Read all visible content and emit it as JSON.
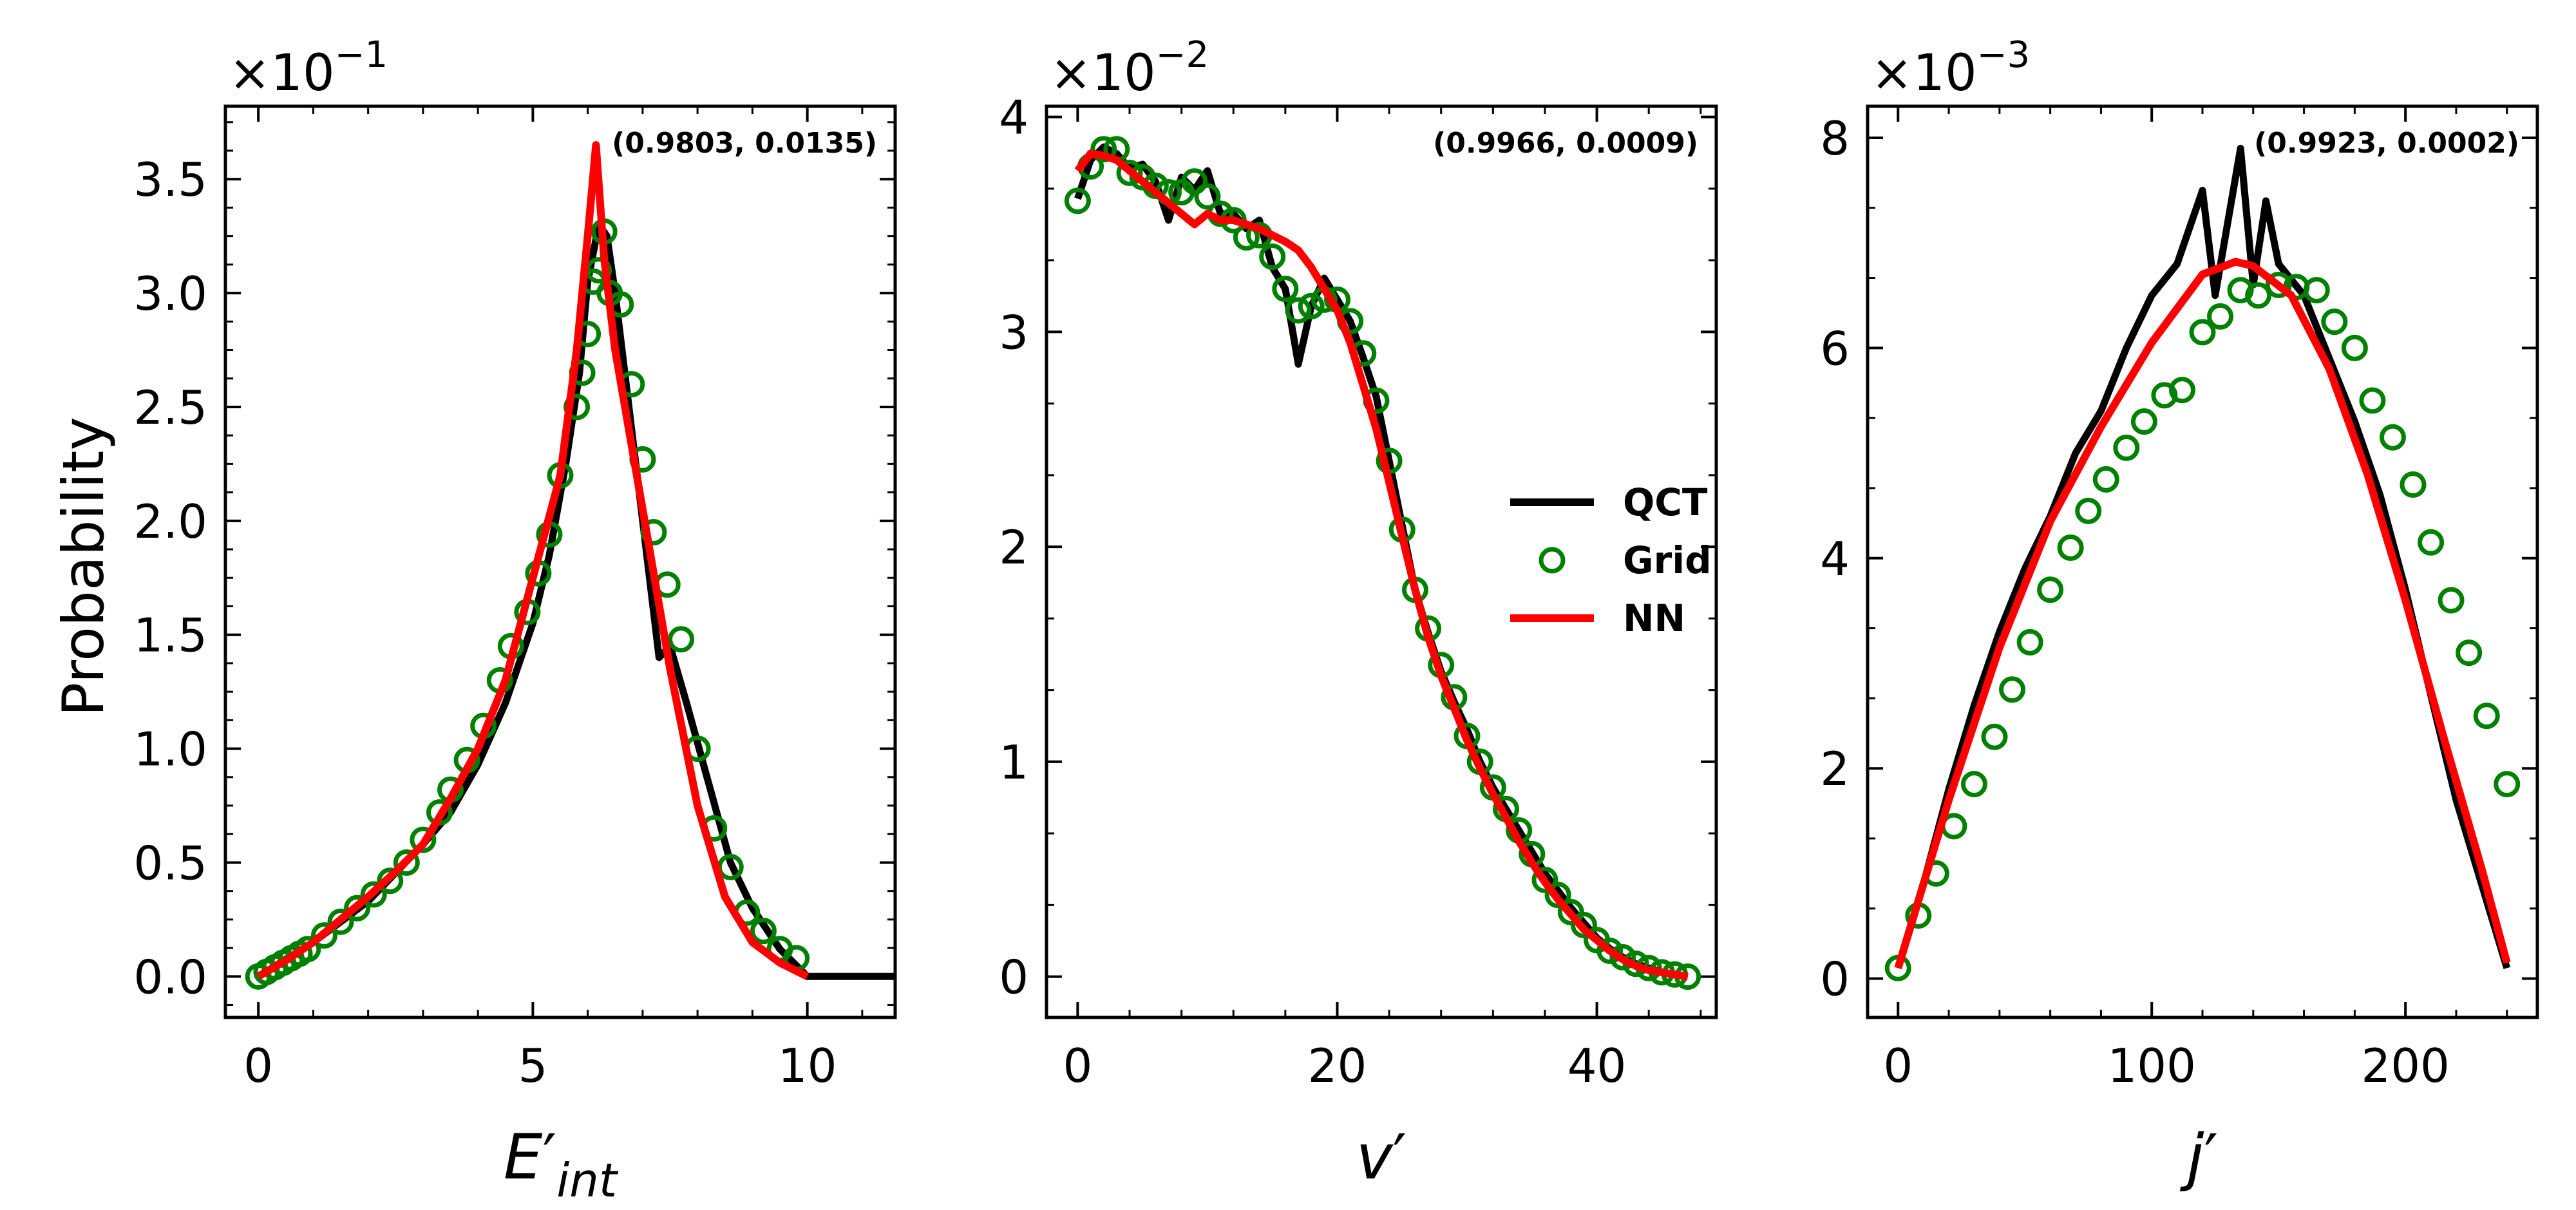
{
  "ylabel": "Probability",
  "legend": {
    "placement": "panel-2-middle-right",
    "entries": [
      {
        "label": "QCT",
        "color": "#000000",
        "kind": "line"
      },
      {
        "label": "Grid",
        "color": "#008000",
        "kind": "marker"
      },
      {
        "label": "NN",
        "color": "#ff0000",
        "kind": "line"
      }
    ]
  },
  "chart_data": [
    {
      "type": "line",
      "xlabel_base": "E",
      "xlabel_prime": "′",
      "xlabel_sub": "int",
      "multiplier_base": "×10",
      "multiplier_exp": "−1",
      "annotation": "(0.9803, 0.0135)",
      "xlim": [
        -0.6,
        11.6
      ],
      "ylim": [
        -0.18,
        3.82
      ],
      "xticks": [
        0,
        5,
        10
      ],
      "yticks": [
        0.0,
        0.5,
        1.0,
        1.5,
        2.0,
        2.5,
        3.0,
        3.5
      ],
      "ytick_labels": [
        "0.0",
        "0.5",
        "1.0",
        "1.5",
        "2.0",
        "2.5",
        "3.0",
        "3.5"
      ],
      "series": [
        {
          "name": "QCT",
          "x": [
            0,
            1,
            2,
            3,
            3.5,
            4,
            4.5,
            5,
            5.3,
            5.6,
            5.85,
            6.0,
            6.2,
            6.35,
            6.5,
            6.7,
            7.0,
            7.3,
            7.5,
            7.8,
            8.2,
            8.6,
            9.0,
            9.5,
            10.0,
            11.6
          ],
          "y": [
            0.0,
            0.15,
            0.33,
            0.58,
            0.72,
            0.93,
            1.2,
            1.55,
            1.85,
            2.25,
            2.65,
            3.05,
            3.3,
            3.25,
            3.0,
            2.6,
            2.0,
            1.4,
            1.45,
            1.2,
            0.85,
            0.5,
            0.3,
            0.12,
            0.0,
            0.0
          ]
        },
        {
          "name": "Grid",
          "x": [
            0.0,
            0.15,
            0.3,
            0.45,
            0.6,
            0.75,
            0.9,
            1.2,
            1.5,
            1.8,
            2.1,
            2.4,
            2.7,
            3.0,
            3.3,
            3.5,
            3.8,
            4.1,
            4.4,
            4.6,
            4.9,
            5.1,
            5.3,
            5.5,
            5.8,
            5.9,
            6.0,
            6.1,
            6.2,
            6.3,
            6.4,
            6.6,
            6.8,
            7.0,
            7.2,
            7.45,
            7.7,
            8.0,
            8.3,
            8.6,
            8.9,
            9.2,
            9.5,
            9.8
          ],
          "y": [
            0.0,
            0.02,
            0.04,
            0.06,
            0.08,
            0.1,
            0.12,
            0.18,
            0.24,
            0.3,
            0.36,
            0.42,
            0.5,
            0.6,
            0.72,
            0.82,
            0.95,
            1.1,
            1.3,
            1.45,
            1.6,
            1.77,
            1.94,
            2.2,
            2.5,
            2.65,
            2.82,
            3.05,
            3.1,
            3.27,
            3.0,
            2.95,
            2.6,
            2.27,
            1.95,
            1.72,
            1.48,
            1.0,
            0.65,
            0.48,
            0.28,
            0.2,
            0.12,
            0.08
          ]
        },
        {
          "name": "NN",
          "x": [
            0,
            0.5,
            1,
            1.5,
            2,
            2.5,
            3,
            3.5,
            4,
            4.5,
            5,
            5.5,
            5.8,
            6.0,
            6.15,
            6.3,
            6.5,
            7.0,
            7.5,
            8.0,
            8.5,
            9.0,
            9.5,
            10.0
          ],
          "y": [
            0.0,
            0.07,
            0.15,
            0.25,
            0.35,
            0.46,
            0.58,
            0.78,
            1.0,
            1.3,
            1.75,
            2.2,
            2.75,
            3.25,
            3.65,
            3.15,
            2.75,
            2.05,
            1.35,
            0.75,
            0.35,
            0.15,
            0.06,
            0.0
          ]
        }
      ]
    },
    {
      "type": "line",
      "xlabel_base": "v",
      "xlabel_prime": "′",
      "xlabel_sub": "",
      "multiplier_base": "×10",
      "multiplier_exp": "−2",
      "annotation": "(0.9966, 0.0009)",
      "xlim": [
        -2.4,
        49.2
      ],
      "ylim": [
        -0.19,
        4.05
      ],
      "xticks": [
        0,
        20,
        40
      ],
      "yticks": [
        0,
        1,
        2,
        3,
        4
      ],
      "ytick_labels": [
        "0",
        "1",
        "2",
        "3",
        "4"
      ],
      "series": [
        {
          "name": "QCT",
          "x": [
            0,
            1,
            2,
            3,
            4,
            5,
            6,
            7,
            8,
            9,
            10,
            11,
            12,
            13,
            14,
            15,
            16,
            17,
            18,
            19,
            20,
            21,
            22,
            23,
            24,
            25,
            26,
            27,
            28,
            29,
            30,
            31,
            32,
            33,
            34,
            35,
            36,
            37,
            38,
            39,
            40,
            41,
            42,
            43,
            44,
            45,
            46,
            47
          ],
          "y": [
            3.62,
            3.8,
            3.86,
            3.83,
            3.76,
            3.78,
            3.7,
            3.52,
            3.72,
            3.66,
            3.75,
            3.55,
            3.55,
            3.48,
            3.52,
            3.3,
            3.2,
            2.85,
            3.12,
            3.25,
            3.15,
            3.05,
            2.88,
            2.7,
            2.4,
            2.1,
            1.8,
            1.6,
            1.42,
            1.28,
            1.15,
            1.0,
            0.88,
            0.78,
            0.68,
            0.58,
            0.48,
            0.4,
            0.32,
            0.25,
            0.18,
            0.13,
            0.09,
            0.06,
            0.04,
            0.02,
            0.01,
            0.0
          ]
        },
        {
          "name": "Grid",
          "x": [
            0,
            1,
            2,
            3,
            4,
            5,
            6,
            7,
            8,
            9,
            10,
            11,
            12,
            13,
            14,
            15,
            16,
            17,
            18,
            19,
            20,
            21,
            22,
            23,
            24,
            25,
            26,
            27,
            28,
            29,
            30,
            31,
            32,
            33,
            34,
            35,
            36,
            37,
            38,
            39,
            40,
            41,
            42,
            43,
            44,
            45,
            46,
            47
          ],
          "y": [
            3.61,
            3.77,
            3.85,
            3.85,
            3.74,
            3.72,
            3.68,
            3.65,
            3.65,
            3.7,
            3.63,
            3.55,
            3.52,
            3.44,
            3.45,
            3.35,
            3.2,
            3.1,
            3.12,
            3.15,
            3.15,
            3.05,
            2.9,
            2.68,
            2.4,
            2.08,
            1.8,
            1.62,
            1.45,
            1.3,
            1.12,
            1.0,
            0.88,
            0.78,
            0.68,
            0.57,
            0.45,
            0.38,
            0.3,
            0.24,
            0.17,
            0.12,
            0.09,
            0.06,
            0.04,
            0.02,
            0.01,
            0.0
          ]
        },
        {
          "name": "NN",
          "x": [
            0,
            1,
            2,
            3,
            4,
            5,
            6,
            7,
            8,
            9,
            10,
            11,
            12,
            13,
            14,
            15,
            16,
            17,
            18,
            19,
            20,
            21,
            22,
            23,
            24,
            25,
            26,
            27,
            28,
            29,
            30,
            31,
            32,
            33,
            34,
            35,
            36,
            37,
            38,
            39,
            40,
            41,
            42,
            43,
            44,
            45,
            46,
            47
          ],
          "y": [
            3.75,
            3.83,
            3.82,
            3.8,
            3.75,
            3.7,
            3.65,
            3.6,
            3.55,
            3.5,
            3.55,
            3.52,
            3.52,
            3.5,
            3.48,
            3.45,
            3.42,
            3.38,
            3.3,
            3.2,
            3.1,
            2.95,
            2.75,
            2.55,
            2.3,
            2.05,
            1.8,
            1.58,
            1.4,
            1.25,
            1.1,
            0.97,
            0.85,
            0.74,
            0.63,
            0.53,
            0.44,
            0.36,
            0.29,
            0.22,
            0.17,
            0.12,
            0.08,
            0.05,
            0.03,
            0.02,
            0.01,
            0.0
          ]
        }
      ]
    },
    {
      "type": "line",
      "xlabel_base": "j",
      "xlabel_prime": "′",
      "xlabel_sub": "",
      "multiplier_base": "×10",
      "multiplier_exp": "−3",
      "annotation": "(0.9923, 0.0002)",
      "xlim": [
        -12,
        252
      ],
      "ylim": [
        -0.37,
        8.3
      ],
      "xticks": [
        0,
        100,
        200
      ],
      "yticks": [
        0,
        2,
        4,
        6,
        8
      ],
      "ytick_labels": [
        "0",
        "2",
        "4",
        "6",
        "8"
      ],
      "series": [
        {
          "name": "QCT",
          "x": [
            0,
            10,
            20,
            30,
            40,
            50,
            60,
            70,
            80,
            90,
            100,
            110,
            120,
            125,
            130,
            135,
            140,
            145,
            150,
            160,
            170,
            180,
            190,
            200,
            210,
            220,
            230,
            240
          ],
          "y": [
            0.1,
            0.9,
            1.8,
            2.6,
            3.3,
            3.9,
            4.4,
            5.0,
            5.4,
            6.0,
            6.5,
            6.8,
            7.5,
            6.5,
            7.2,
            7.9,
            6.6,
            7.4,
            6.8,
            6.5,
            5.9,
            5.3,
            4.6,
            3.7,
            2.7,
            1.7,
            0.9,
            0.1
          ]
        },
        {
          "name": "Grid",
          "x": [
            0,
            8,
            15,
            22,
            30,
            38,
            45,
            52,
            60,
            68,
            75,
            82,
            90,
            97,
            105,
            112,
            120,
            127,
            135,
            142,
            150,
            157,
            165,
            172,
            180,
            187,
            195,
            203,
            210,
            218,
            225,
            232,
            240
          ],
          "y": [
            0.1,
            0.6,
            1.0,
            1.45,
            1.85,
            2.3,
            2.75,
            3.2,
            3.7,
            4.1,
            4.45,
            4.75,
            5.05,
            5.3,
            5.55,
            5.6,
            6.15,
            6.3,
            6.55,
            6.5,
            6.6,
            6.58,
            6.55,
            6.25,
            6.0,
            5.5,
            5.15,
            4.7,
            4.15,
            3.6,
            3.1,
            2.5,
            1.85
          ]
        },
        {
          "name": "NN",
          "x": [
            0,
            20,
            40,
            60,
            80,
            100,
            120,
            133,
            140,
            155,
            170,
            185,
            200,
            215,
            230,
            240
          ],
          "y": [
            0.1,
            1.7,
            3.15,
            4.35,
            5.25,
            6.05,
            6.7,
            6.82,
            6.78,
            6.5,
            5.8,
            4.8,
            3.6,
            2.3,
            1.05,
            0.15
          ]
        }
      ]
    }
  ]
}
